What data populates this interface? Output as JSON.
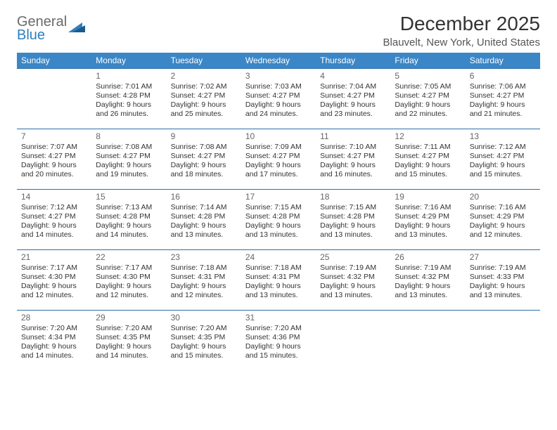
{
  "logo": {
    "word1": "General",
    "word2": "Blue"
  },
  "title": "December 2025",
  "location": "Blauvelt, New York, United States",
  "colors": {
    "header_bg": "#3b86c6",
    "header_text": "#ffffff",
    "cell_border": "#2f6fa8",
    "body_text": "#333333",
    "daynum_text": "#666666",
    "logo_gray": "#6a6a6a",
    "logo_blue": "#2f7fbc",
    "background": "#ffffff"
  },
  "typography": {
    "title_fontsize": 28,
    "location_fontsize": 15,
    "header_fontsize": 12,
    "daynum_fontsize": 12,
    "cell_fontsize": 10.5
  },
  "days_of_week": [
    "Sunday",
    "Monday",
    "Tuesday",
    "Wednesday",
    "Thursday",
    "Friday",
    "Saturday"
  ],
  "weeks": [
    [
      null,
      {
        "n": "1",
        "sr": "7:01 AM",
        "ss": "4:28 PM",
        "dl": "9 hours and 26 minutes."
      },
      {
        "n": "2",
        "sr": "7:02 AM",
        "ss": "4:27 PM",
        "dl": "9 hours and 25 minutes."
      },
      {
        "n": "3",
        "sr": "7:03 AM",
        "ss": "4:27 PM",
        "dl": "9 hours and 24 minutes."
      },
      {
        "n": "4",
        "sr": "7:04 AM",
        "ss": "4:27 PM",
        "dl": "9 hours and 23 minutes."
      },
      {
        "n": "5",
        "sr": "7:05 AM",
        "ss": "4:27 PM",
        "dl": "9 hours and 22 minutes."
      },
      {
        "n": "6",
        "sr": "7:06 AM",
        "ss": "4:27 PM",
        "dl": "9 hours and 21 minutes."
      }
    ],
    [
      {
        "n": "7",
        "sr": "7:07 AM",
        "ss": "4:27 PM",
        "dl": "9 hours and 20 minutes."
      },
      {
        "n": "8",
        "sr": "7:08 AM",
        "ss": "4:27 PM",
        "dl": "9 hours and 19 minutes."
      },
      {
        "n": "9",
        "sr": "7:08 AM",
        "ss": "4:27 PM",
        "dl": "9 hours and 18 minutes."
      },
      {
        "n": "10",
        "sr": "7:09 AM",
        "ss": "4:27 PM",
        "dl": "9 hours and 17 minutes."
      },
      {
        "n": "11",
        "sr": "7:10 AM",
        "ss": "4:27 PM",
        "dl": "9 hours and 16 minutes."
      },
      {
        "n": "12",
        "sr": "7:11 AM",
        "ss": "4:27 PM",
        "dl": "9 hours and 15 minutes."
      },
      {
        "n": "13",
        "sr": "7:12 AM",
        "ss": "4:27 PM",
        "dl": "9 hours and 15 minutes."
      }
    ],
    [
      {
        "n": "14",
        "sr": "7:12 AM",
        "ss": "4:27 PM",
        "dl": "9 hours and 14 minutes."
      },
      {
        "n": "15",
        "sr": "7:13 AM",
        "ss": "4:28 PM",
        "dl": "9 hours and 14 minutes."
      },
      {
        "n": "16",
        "sr": "7:14 AM",
        "ss": "4:28 PM",
        "dl": "9 hours and 13 minutes."
      },
      {
        "n": "17",
        "sr": "7:15 AM",
        "ss": "4:28 PM",
        "dl": "9 hours and 13 minutes."
      },
      {
        "n": "18",
        "sr": "7:15 AM",
        "ss": "4:28 PM",
        "dl": "9 hours and 13 minutes."
      },
      {
        "n": "19",
        "sr": "7:16 AM",
        "ss": "4:29 PM",
        "dl": "9 hours and 13 minutes."
      },
      {
        "n": "20",
        "sr": "7:16 AM",
        "ss": "4:29 PM",
        "dl": "9 hours and 12 minutes."
      }
    ],
    [
      {
        "n": "21",
        "sr": "7:17 AM",
        "ss": "4:30 PM",
        "dl": "9 hours and 12 minutes."
      },
      {
        "n": "22",
        "sr": "7:17 AM",
        "ss": "4:30 PM",
        "dl": "9 hours and 12 minutes."
      },
      {
        "n": "23",
        "sr": "7:18 AM",
        "ss": "4:31 PM",
        "dl": "9 hours and 12 minutes."
      },
      {
        "n": "24",
        "sr": "7:18 AM",
        "ss": "4:31 PM",
        "dl": "9 hours and 13 minutes."
      },
      {
        "n": "25",
        "sr": "7:19 AM",
        "ss": "4:32 PM",
        "dl": "9 hours and 13 minutes."
      },
      {
        "n": "26",
        "sr": "7:19 AM",
        "ss": "4:32 PM",
        "dl": "9 hours and 13 minutes."
      },
      {
        "n": "27",
        "sr": "7:19 AM",
        "ss": "4:33 PM",
        "dl": "9 hours and 13 minutes."
      }
    ],
    [
      {
        "n": "28",
        "sr": "7:20 AM",
        "ss": "4:34 PM",
        "dl": "9 hours and 14 minutes."
      },
      {
        "n": "29",
        "sr": "7:20 AM",
        "ss": "4:35 PM",
        "dl": "9 hours and 14 minutes."
      },
      {
        "n": "30",
        "sr": "7:20 AM",
        "ss": "4:35 PM",
        "dl": "9 hours and 15 minutes."
      },
      {
        "n": "31",
        "sr": "7:20 AM",
        "ss": "4:36 PM",
        "dl": "9 hours and 15 minutes."
      },
      null,
      null,
      null
    ]
  ],
  "labels": {
    "sunrise": "Sunrise:",
    "sunset": "Sunset:",
    "daylight": "Daylight:"
  }
}
